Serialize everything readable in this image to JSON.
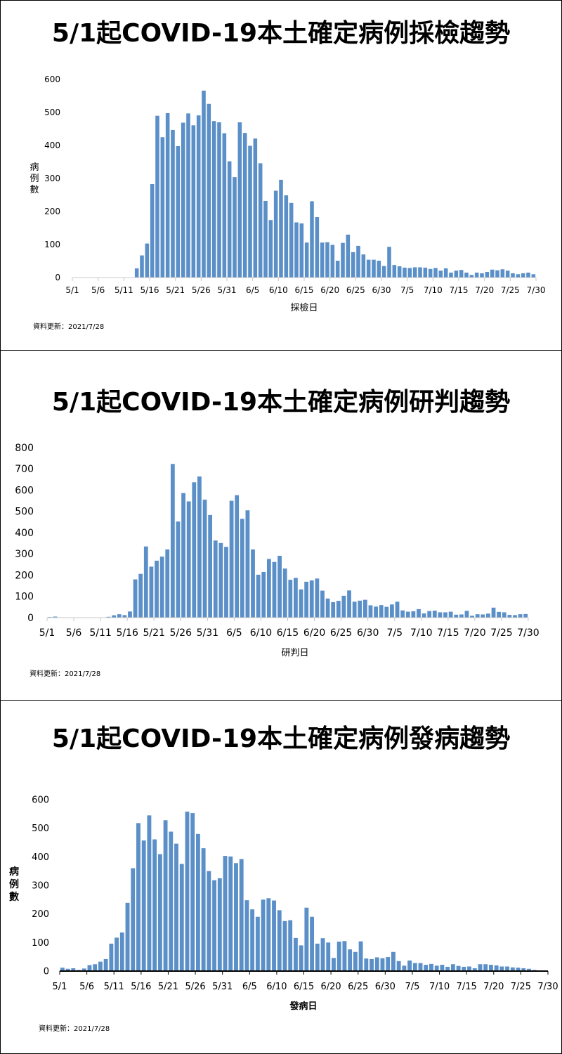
{
  "colors": {
    "bar": "#5b8fc7",
    "axis": "#d0d0d0",
    "border": "#000000"
  },
  "chart_data": [
    {
      "type": "bar",
      "title": "5/1起COVID-19本土確定病例採檢趨勢",
      "xlabel": "採檢日",
      "ylabel": "病例數",
      "ylim": [
        0,
        600
      ],
      "yticks": [
        0,
        100,
        200,
        300,
        400,
        500,
        600
      ],
      "xtick_labels": [
        "5/1",
        "5/6",
        "5/11",
        "5/16",
        "5/21",
        "5/26",
        "5/31",
        "6/5",
        "6/10",
        "6/15",
        "6/20",
        "6/25",
        "6/30",
        "7/5",
        "7/10",
        "7/15",
        "7/20",
        "7/25",
        "7/30"
      ],
      "x_start": "5/1",
      "values": [
        0,
        0,
        0,
        0,
        0,
        0,
        0,
        0,
        0,
        0,
        0,
        0,
        28,
        67,
        103,
        283,
        490,
        425,
        498,
        447,
        398,
        469,
        497,
        461,
        491,
        566,
        526,
        474,
        470,
        437,
        352,
        304,
        470,
        438,
        399,
        421,
        346,
        232,
        174,
        263,
        296,
        249,
        226,
        167,
        164,
        106,
        231,
        183,
        106,
        107,
        99,
        51,
        105,
        130,
        77,
        96,
        70,
        54,
        54,
        51,
        35,
        93,
        38,
        34,
        30,
        29,
        31,
        31,
        30,
        26,
        29,
        21,
        28,
        15,
        21,
        23,
        15,
        8,
        15,
        13,
        17,
        24,
        22,
        25,
        21,
        13,
        10,
        13,
        15,
        10
      ]
    },
    {
      "type": "bar",
      "title": "5/1起COVID-19本土確定病例研判趨勢",
      "xlabel": "研判日",
      "ylabel": "",
      "ylim": [
        0,
        800
      ],
      "yticks": [
        0,
        100,
        200,
        300,
        400,
        500,
        600,
        700,
        800
      ],
      "xtick_labels": [
        "5/1",
        "5/6",
        "5/11",
        "5/16",
        "5/21",
        "5/26",
        "5/31",
        "6/5",
        "6/10",
        "6/15",
        "6/20",
        "6/25",
        "6/30",
        "7/5",
        "7/10",
        "7/15",
        "7/20",
        "7/25",
        "7/30"
      ],
      "x_start": "5/1",
      "values": [
        3,
        5,
        0,
        0,
        0,
        0,
        0,
        0,
        0,
        0,
        0,
        4,
        11,
        16,
        12,
        29,
        180,
        206,
        335,
        240,
        268,
        287,
        321,
        723,
        452,
        586,
        547,
        637,
        664,
        555,
        483,
        363,
        351,
        333,
        550,
        576,
        465,
        505,
        321,
        202,
        215,
        276,
        262,
        291,
        231,
        178,
        187,
        133,
        169,
        175,
        184,
        127,
        90,
        73,
        79,
        103,
        128,
        75,
        80,
        84,
        58,
        52,
        59,
        51,
        62,
        75,
        34,
        28,
        30,
        40,
        20,
        31,
        33,
        25,
        25,
        28,
        14,
        15,
        32,
        9,
        16,
        15,
        19,
        47,
        27,
        25,
        13,
        12,
        16,
        17
      ]
    },
    {
      "type": "bar",
      "title": "5/1起COVID-19本土確定病例發病趨勢",
      "xlabel": "發病日",
      "ylabel": "病例數",
      "ylim": [
        0,
        600
      ],
      "yticks": [
        0,
        100,
        200,
        300,
        400,
        500,
        600
      ],
      "xtick_labels": [
        "5/1",
        "5/6",
        "5/11",
        "5/16",
        "5/21",
        "5/26",
        "5/31",
        "6/5",
        "6/10",
        "6/15",
        "6/20",
        "6/25",
        "6/30",
        "7/5",
        "7/10",
        "7/15",
        "7/20",
        "7/25",
        "7/30"
      ],
      "x_start": "5/1",
      "values": [
        12,
        8,
        10,
        4,
        9,
        21,
        24,
        33,
        42,
        96,
        117,
        135,
        239,
        360,
        518,
        457,
        545,
        461,
        409,
        528,
        488,
        446,
        375,
        558,
        553,
        480,
        430,
        350,
        318,
        325,
        403,
        401,
        378,
        392,
        248,
        216,
        190,
        250,
        255,
        247,
        213,
        175,
        178,
        116,
        90,
        222,
        190,
        96,
        115,
        100,
        46,
        103,
        105,
        76,
        67,
        104,
        44,
        42,
        48,
        45,
        49,
        67,
        35,
        19,
        37,
        28,
        28,
        22,
        25,
        19,
        22,
        15,
        24,
        18,
        15,
        16,
        10,
        24,
        24,
        22,
        20,
        16,
        16,
        13,
        12,
        10,
        8,
        4,
        2,
        0
      ]
    },
    null
  ],
  "footnotes": [
    "資料更新：2021/7/28",
    "資料更新：2021/7/28",
    "資料更新：2021/7/28"
  ],
  "ylabels": [
    "病例數",
    "",
    "病例數"
  ]
}
